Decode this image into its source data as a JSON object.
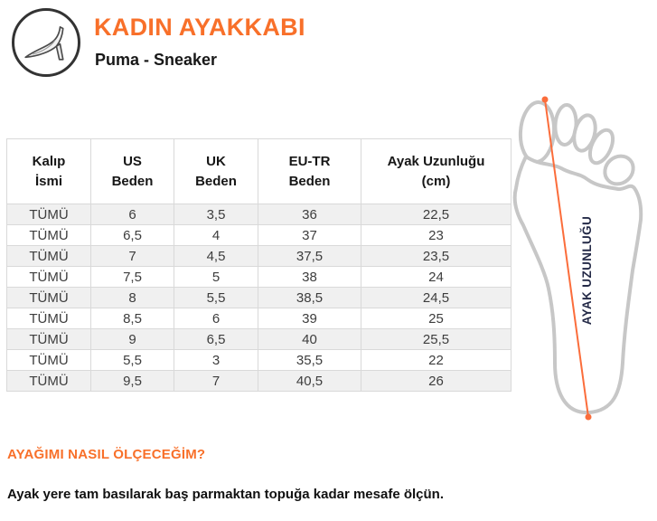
{
  "header": {
    "title": "KADIN AYAKKABI",
    "subtitle": "Puma - Sneaker",
    "icon": "high-heel-icon"
  },
  "table": {
    "columns": [
      {
        "line1": "Kalıp",
        "line2": "İsmi"
      },
      {
        "line1": "US",
        "line2": "Beden"
      },
      {
        "line1": "UK",
        "line2": "Beden"
      },
      {
        "line1": "EU-TR",
        "line2": "Beden"
      },
      {
        "line1": "Ayak Uzunluğu",
        "line2": "(cm)"
      }
    ],
    "rows": [
      [
        "TÜMÜ",
        "6",
        "3,5",
        "36",
        "22,5"
      ],
      [
        "TÜMÜ",
        "6,5",
        "4",
        "37",
        "23"
      ],
      [
        "TÜMÜ",
        "7",
        "4,5",
        "37,5",
        "23,5"
      ],
      [
        "TÜMÜ",
        "7,5",
        "5",
        "38",
        "24"
      ],
      [
        "TÜMÜ",
        "8",
        "5,5",
        "38,5",
        "24,5"
      ],
      [
        "TÜMÜ",
        "8,5",
        "6",
        "39",
        "25"
      ],
      [
        "TÜMÜ",
        "9",
        "6,5",
        "40",
        "25,5"
      ],
      [
        "TÜMÜ",
        "5,5",
        "3",
        "35,5",
        "22"
      ],
      [
        "TÜMÜ",
        "9,5",
        "7",
        "40,5",
        "26"
      ]
    ]
  },
  "diagram": {
    "label": "AYAK UZUNLUĞU"
  },
  "footer": {
    "heading": "AYAĞIMI NASIL ÖLÇECEĞİM?",
    "text": "Ayak yere tam basılarak baş parmaktan topuğa kadar mesafe ölçün."
  },
  "colors": {
    "accent": "#F8702A",
    "measure_line": "#FB6D3B",
    "diagram_label": "#242A47",
    "foot_outline": "#C7C7C7",
    "table_border": "#D9D9D9",
    "row_stripe": "#F0F0F0"
  }
}
